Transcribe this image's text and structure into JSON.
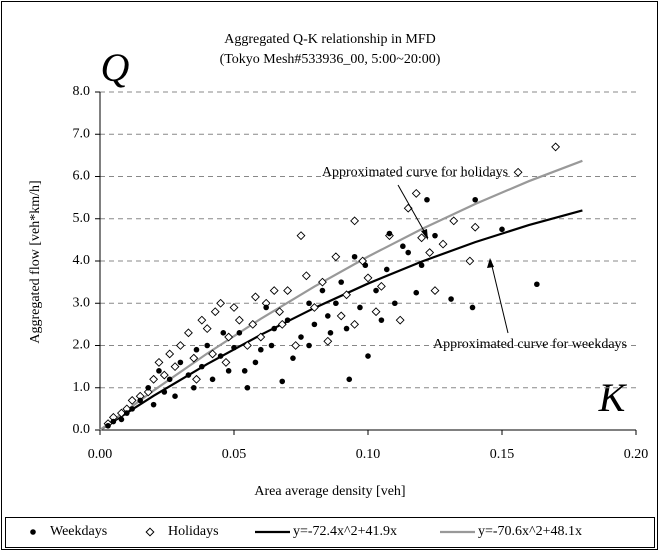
{
  "chart_data": {
    "type": "scatter",
    "title": "Aggregated Q-K relationship in MFD",
    "subtitle": "(Tokyo Mesh#533936_00, 5:00~20:00)",
    "x_label": "Area average density [veh]",
    "y_label": "Aggregated flow [veh*km/h]",
    "x_symbol": "K",
    "y_symbol": "Q",
    "annotations": [
      "Approximated curve for holidays",
      "Approximated curve for weekdays"
    ],
    "xlim": [
      0,
      0.2
    ],
    "ylim": [
      0,
      8
    ],
    "xticks": [
      {
        "value": 0,
        "label": "0.00"
      },
      {
        "value": 0.05,
        "label": "0.05"
      },
      {
        "value": 0.1,
        "label": "0.10"
      },
      {
        "value": 0.15,
        "label": "0.15"
      },
      {
        "value": 0.2,
        "label": "0.20"
      }
    ],
    "yticks": [
      {
        "value": 0,
        "label": "0.0"
      },
      {
        "value": 1,
        "label": "1.0"
      },
      {
        "value": 2,
        "label": "2.0"
      },
      {
        "value": 3,
        "label": "3.0"
      },
      {
        "value": 4,
        "label": "4.0"
      },
      {
        "value": 5,
        "label": "5.0"
      },
      {
        "value": 6,
        "label": "6.0"
      },
      {
        "value": 7,
        "label": "7.0"
      },
      {
        "value": 8,
        "label": "8.0"
      }
    ],
    "grid": true,
    "legend": "bottom",
    "series": [
      {
        "name": "y=-72.4x^2+41.9x",
        "style": "line",
        "color": "#000000",
        "x": [
          0,
          0.02,
          0.04,
          0.06,
          0.08,
          0.1,
          0.12,
          0.14,
          0.16,
          0.18
        ],
        "values": [
          0,
          0.809,
          1.56,
          2.253,
          2.889,
          3.466,
          3.985,
          4.447,
          4.851,
          5.196
        ]
      },
      {
        "name": "y=-70.6x^2+48.1x",
        "style": "line",
        "color": "#999999",
        "x": [
          0,
          0.02,
          0.04,
          0.06,
          0.08,
          0.1,
          0.12,
          0.14,
          0.16,
          0.18
        ],
        "values": [
          0,
          0.934,
          1.811,
          2.632,
          3.396,
          4.104,
          4.755,
          5.35,
          5.889,
          6.371
        ]
      },
      {
        "name": "Holidays",
        "style": "diamond",
        "color": "#000000",
        "x": [
          0.17,
          0.156,
          0.118,
          0.115,
          0.095,
          0.108,
          0.12,
          0.132,
          0.14,
          0.138,
          0.125,
          0.098,
          0.075,
          0.088,
          0.1,
          0.095,
          0.092,
          0.083,
          0.08,
          0.077,
          0.07,
          0.068,
          0.065,
          0.062,
          0.06,
          0.058,
          0.055,
          0.052,
          0.05,
          0.048,
          0.045,
          0.043,
          0.042,
          0.04,
          0.038,
          0.035,
          0.033,
          0.03,
          0.028,
          0.026,
          0.024,
          0.022,
          0.02,
          0.018,
          0.015,
          0.012,
          0.01,
          0.008,
          0.005,
          0.003,
          0.085,
          0.073,
          0.09,
          0.103,
          0.112,
          0.105,
          0.057,
          0.067,
          0.036,
          0.047,
          0.123,
          0.128
        ],
        "values": [
          6.7,
          6.1,
          5.6,
          5.25,
          4.95,
          4.6,
          4.55,
          4.95,
          4.8,
          4.0,
          3.3,
          4.0,
          4.6,
          4.1,
          3.6,
          2.5,
          3.2,
          3.5,
          2.9,
          3.65,
          3.3,
          2.5,
          3.3,
          3.0,
          2.2,
          3.15,
          2.0,
          2.6,
          2.9,
          2.2,
          3.0,
          2.8,
          1.8,
          2.4,
          2.6,
          1.7,
          2.3,
          2.0,
          1.5,
          1.8,
          1.3,
          1.6,
          1.2,
          0.9,
          0.8,
          0.7,
          0.5,
          0.4,
          0.3,
          0.15,
          2.1,
          2.0,
          2.7,
          2.8,
          2.6,
          3.4,
          2.5,
          2.8,
          1.2,
          1.6,
          4.2,
          4.4
        ]
      },
      {
        "name": "Weekdays",
        "style": "dot",
        "color": "#000000",
        "x": [
          0.122,
          0.14,
          0.15,
          0.163,
          0.139,
          0.108,
          0.113,
          0.118,
          0.1,
          0.093,
          0.095,
          0.099,
          0.103,
          0.105,
          0.11,
          0.09,
          0.088,
          0.085,
          0.08,
          0.078,
          0.075,
          0.072,
          0.068,
          0.065,
          0.062,
          0.06,
          0.058,
          0.055,
          0.052,
          0.05,
          0.048,
          0.045,
          0.042,
          0.04,
          0.038,
          0.035,
          0.033,
          0.03,
          0.028,
          0.026,
          0.024,
          0.022,
          0.02,
          0.018,
          0.015,
          0.012,
          0.01,
          0.008,
          0.005,
          0.003,
          0.07,
          0.083,
          0.097,
          0.115,
          0.125,
          0.131,
          0.086,
          0.064,
          0.054,
          0.036,
          0.046,
          0.078,
          0.092,
          0.107,
          0.12
        ],
        "values": [
          5.45,
          5.45,
          4.75,
          3.45,
          2.9,
          4.65,
          4.35,
          3.25,
          1.75,
          1.2,
          4.1,
          3.9,
          3.3,
          2.6,
          3.0,
          3.5,
          3.0,
          2.7,
          2.5,
          3.0,
          2.2,
          1.7,
          1.15,
          2.4,
          2.9,
          1.9,
          1.6,
          1.0,
          2.3,
          1.95,
          1.4,
          1.75,
          1.2,
          2.0,
          1.5,
          1.0,
          1.3,
          1.6,
          0.8,
          1.2,
          0.9,
          1.4,
          0.6,
          1.0,
          0.7,
          0.5,
          0.4,
          0.25,
          0.2,
          0.1,
          2.6,
          3.3,
          2.9,
          4.2,
          4.6,
          3.1,
          2.3,
          2.0,
          1.4,
          1.9,
          2.3,
          2.0,
          2.4,
          3.8,
          3.9
        ]
      }
    ]
  }
}
